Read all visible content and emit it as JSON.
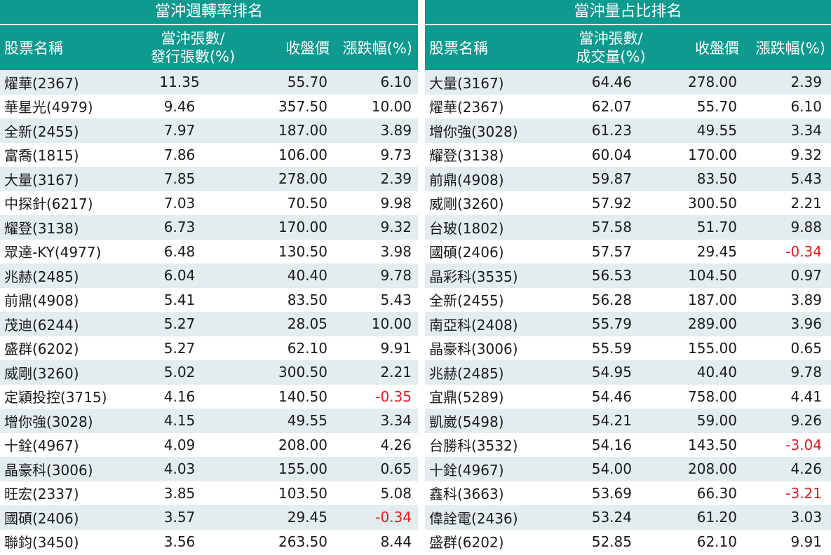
{
  "left": {
    "title": "當沖週轉率排名",
    "headers": {
      "name": "股票名稱",
      "ratio_line1": "當沖張數/",
      "ratio_line2": "發行張數(%)",
      "close": "收盤價",
      "change": "漲跌幅(%)"
    },
    "rows": [
      {
        "name": "燿華(2367)",
        "ratio": "11.35",
        "close": "55.70",
        "change": "6.10"
      },
      {
        "name": "華星光(4979)",
        "ratio": "9.46",
        "close": "357.50",
        "change": "10.00"
      },
      {
        "name": "全新(2455)",
        "ratio": "7.97",
        "close": "187.00",
        "change": "3.89"
      },
      {
        "name": "富喬(1815)",
        "ratio": "7.86",
        "close": "106.00",
        "change": "9.73"
      },
      {
        "name": "大量(3167)",
        "ratio": "7.85",
        "close": "278.00",
        "change": "2.39"
      },
      {
        "name": "中探針(6217)",
        "ratio": "7.03",
        "close": "70.50",
        "change": "9.98"
      },
      {
        "name": "耀登(3138)",
        "ratio": "6.73",
        "close": "170.00",
        "change": "9.32"
      },
      {
        "name": "眾達-KY(4977)",
        "ratio": "6.48",
        "close": "130.50",
        "change": "3.98"
      },
      {
        "name": "兆赫(2485)",
        "ratio": "6.04",
        "close": "40.40",
        "change": "9.78"
      },
      {
        "name": "前鼎(4908)",
        "ratio": "5.41",
        "close": "83.50",
        "change": "5.43"
      },
      {
        "name": "茂迪(6244)",
        "ratio": "5.27",
        "close": "28.05",
        "change": "10.00"
      },
      {
        "name": "盛群(6202)",
        "ratio": "5.27",
        "close": "62.10",
        "change": "9.91"
      },
      {
        "name": "威剛(3260)",
        "ratio": "5.02",
        "close": "300.50",
        "change": "2.21"
      },
      {
        "name": "定穎投控(3715)",
        "ratio": "4.16",
        "close": "140.50",
        "change": "-0.35"
      },
      {
        "name": "增你強(3028)",
        "ratio": "4.15",
        "close": "49.55",
        "change": "3.34"
      },
      {
        "name": "十銓(4967)",
        "ratio": "4.09",
        "close": "208.00",
        "change": "4.26"
      },
      {
        "name": "晶豪科(3006)",
        "ratio": "4.03",
        "close": "155.00",
        "change": "0.65"
      },
      {
        "name": "旺宏(2337)",
        "ratio": "3.85",
        "close": "103.50",
        "change": "5.08"
      },
      {
        "name": "國碩(2406)",
        "ratio": "3.57",
        "close": "29.45",
        "change": "-0.34"
      },
      {
        "name": "聯鈞(3450)",
        "ratio": "3.56",
        "close": "263.50",
        "change": "8.44"
      }
    ]
  },
  "right": {
    "title": "當沖量占比排名",
    "headers": {
      "name": "股票名稱",
      "ratio_line1": "當沖張數/",
      "ratio_line2": "成交量(%)",
      "close": "收盤價",
      "change": "漲跌幅(%)"
    },
    "rows": [
      {
        "name": "大量(3167)",
        "ratio": "64.46",
        "close": "278.00",
        "change": "2.39"
      },
      {
        "name": "燿華(2367)",
        "ratio": "62.07",
        "close": "55.70",
        "change": "6.10"
      },
      {
        "name": "增你強(3028)",
        "ratio": "61.23",
        "close": "49.55",
        "change": "3.34"
      },
      {
        "name": "耀登(3138)",
        "ratio": "60.04",
        "close": "170.00",
        "change": "9.32"
      },
      {
        "name": "前鼎(4908)",
        "ratio": "59.87",
        "close": "83.50",
        "change": "5.43"
      },
      {
        "name": "威剛(3260)",
        "ratio": "57.92",
        "close": "300.50",
        "change": "2.21"
      },
      {
        "name": "台玻(1802)",
        "ratio": "57.58",
        "close": "51.70",
        "change": "9.88"
      },
      {
        "name": "國碩(2406)",
        "ratio": "57.57",
        "close": "29.45",
        "change": "-0.34"
      },
      {
        "name": "晶彩科(3535)",
        "ratio": "56.53",
        "close": "104.50",
        "change": "0.97"
      },
      {
        "name": "全新(2455)",
        "ratio": "56.28",
        "close": "187.00",
        "change": "3.89"
      },
      {
        "name": "南亞科(2408)",
        "ratio": "55.79",
        "close": "289.00",
        "change": "3.96"
      },
      {
        "name": "晶豪科(3006)",
        "ratio": "55.59",
        "close": "155.00",
        "change": "0.65"
      },
      {
        "name": "兆赫(2485)",
        "ratio": "54.95",
        "close": "40.40",
        "change": "9.78"
      },
      {
        "name": "宜鼎(5289)",
        "ratio": "54.46",
        "close": "758.00",
        "change": "4.41"
      },
      {
        "name": "凱崴(5498)",
        "ratio": "54.21",
        "close": "59.00",
        "change": "9.26"
      },
      {
        "name": "台勝科(3532)",
        "ratio": "54.16",
        "close": "143.50",
        "change": "-3.04"
      },
      {
        "name": "十銓(4967)",
        "ratio": "54.00",
        "close": "208.00",
        "change": "4.26"
      },
      {
        "name": "鑫科(3663)",
        "ratio": "53.69",
        "close": "66.30",
        "change": "-3.21"
      },
      {
        "name": "偉詮電(2436)",
        "ratio": "53.24",
        "close": "61.20",
        "change": "3.03"
      },
      {
        "name": "盛群(6202)",
        "ratio": "52.85",
        "close": "62.10",
        "change": "9.91"
      }
    ]
  },
  "colors": {
    "header_bg": "#0e9a8e",
    "header_text": "#ffffff",
    "row_shade": "#e3ecee",
    "negative": "#e8191d",
    "text": "#1a1a1a"
  }
}
